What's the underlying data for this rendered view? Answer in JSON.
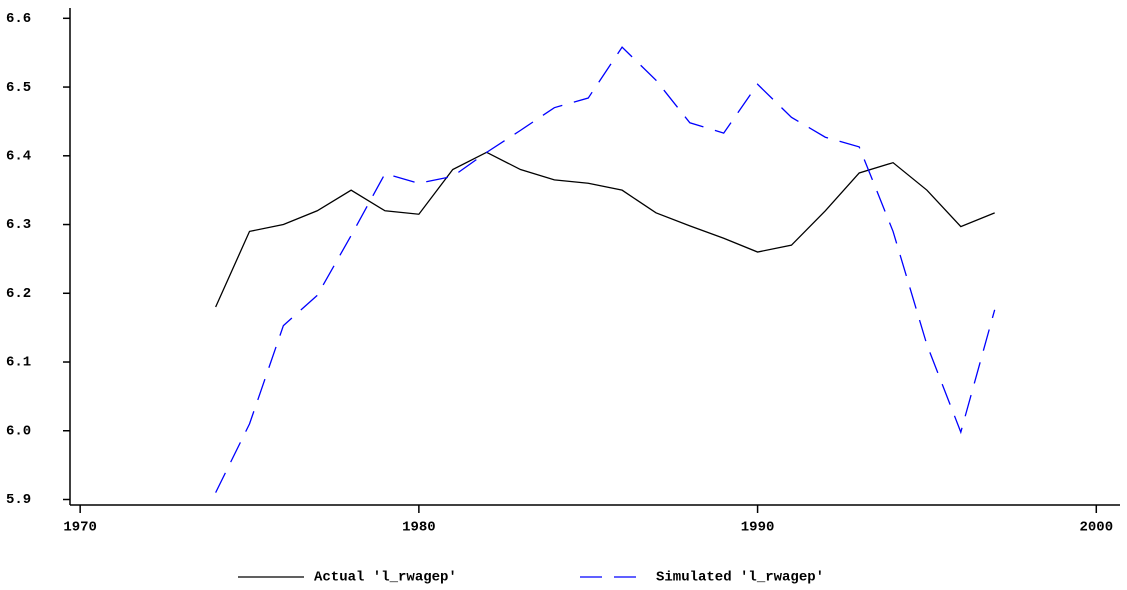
{
  "chart_data": {
    "type": "line",
    "x": [
      1974,
      1975,
      1976,
      1977,
      1978,
      1979,
      1980,
      1981,
      1982,
      1983,
      1984,
      1985,
      1986,
      1987,
      1988,
      1989,
      1990,
      1991,
      1992,
      1993,
      1994,
      1995,
      1996,
      1997
    ],
    "series": [
      {
        "name": "Actual 'l_rwagep'",
        "color": "#000000",
        "dash": "solid",
        "values": [
          6.18,
          6.29,
          6.3,
          6.32,
          6.35,
          6.32,
          6.315,
          6.38,
          6.405,
          6.38,
          6.365,
          6.36,
          6.35,
          6.317,
          6.298,
          6.28,
          6.26,
          6.27,
          6.32,
          6.375,
          6.39,
          6.35,
          6.297,
          6.317
        ]
      },
      {
        "name": "Simulated 'l_rwagep'",
        "color": "#0000ff",
        "dash": "dashed",
        "values": [
          5.91,
          6.01,
          6.153,
          6.197,
          6.284,
          6.374,
          6.36,
          6.37,
          6.405,
          6.437,
          6.47,
          6.484,
          6.558,
          6.51,
          6.448,
          6.433,
          6.504,
          6.456,
          6.427,
          6.413,
          6.29,
          6.125,
          5.998,
          6.176
        ]
      }
    ],
    "xlim": [
      1969.7,
      2000.7
    ],
    "xticks": [
      1970,
      1980,
      1990,
      2000
    ],
    "ylim": [
      5.892,
      6.615
    ],
    "yticks": [
      {
        "value": 5.9,
        "label": "5.9"
      },
      {
        "value": 6.0,
        "label": "6.0"
      },
      {
        "value": 6.1,
        "label": "6.1"
      },
      {
        "value": 6.2,
        "label": "6.2"
      },
      {
        "value": 6.3,
        "label": "6.3"
      },
      {
        "value": 6.4,
        "label": "6.4"
      },
      {
        "value": 6.5,
        "label": "6.5"
      },
      {
        "value": 6.6,
        "label": "6.6"
      }
    ],
    "legend": "bottom"
  }
}
